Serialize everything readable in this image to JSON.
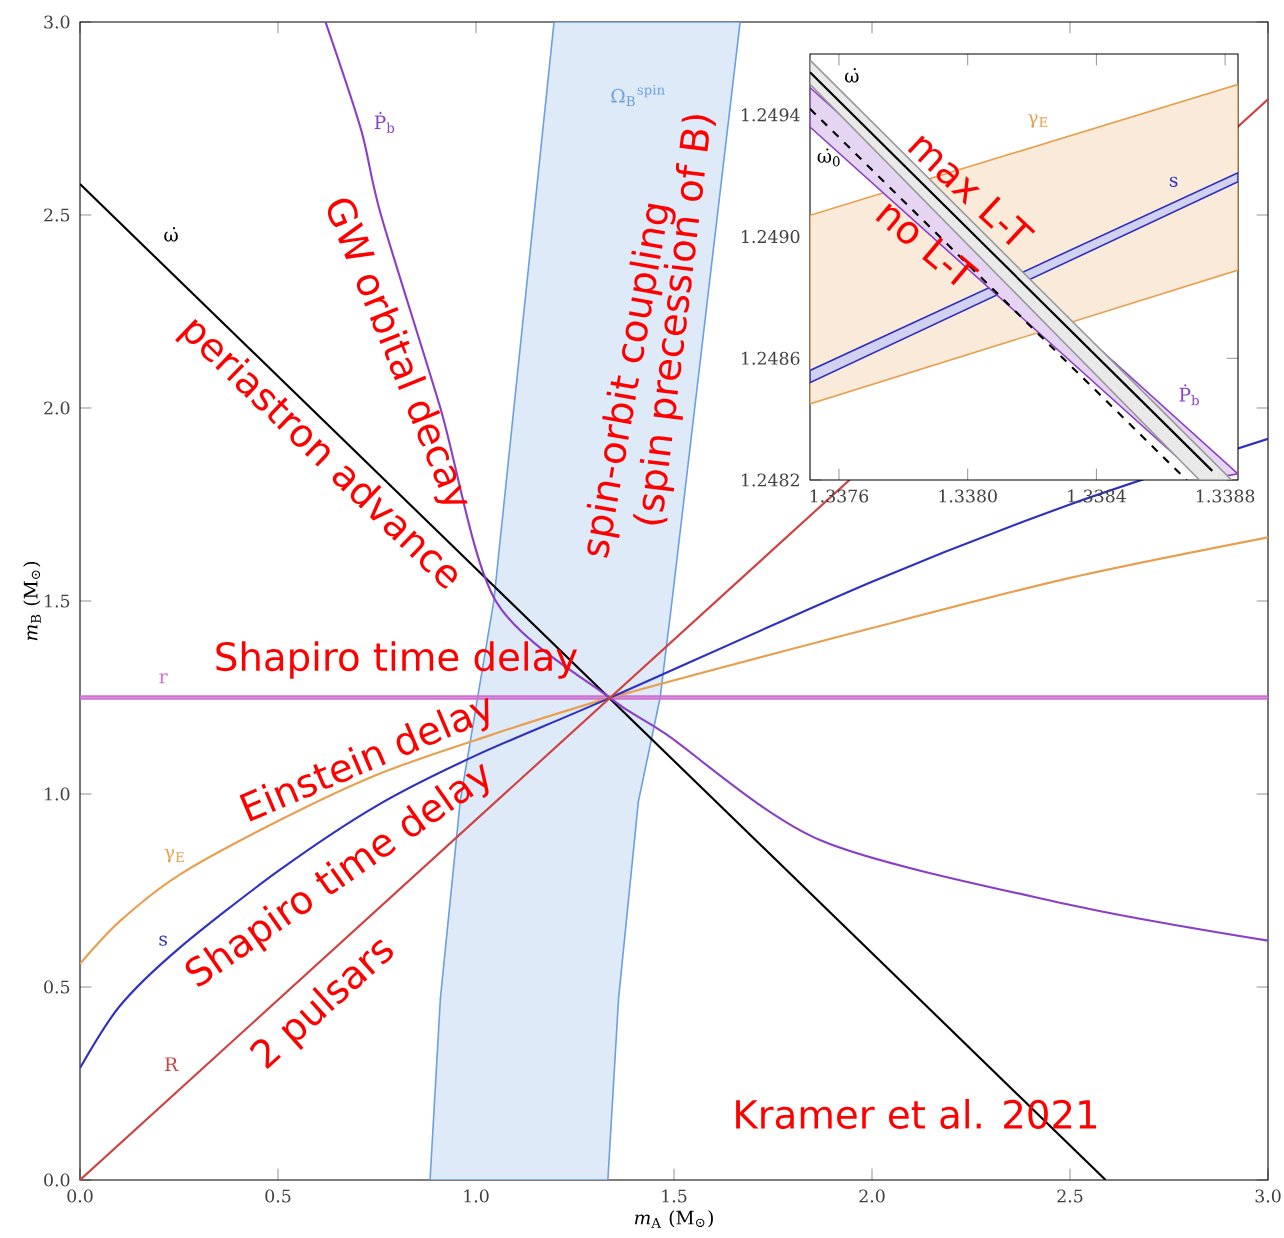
{
  "chart_data": [
    {
      "type": "line",
      "xlabel": "*m*$_{A}$ (M$_{⊙}$)",
      "ylabel": "*m*$_{B}$ (M$_{⊙}$)",
      "xlim": [
        0,
        3
      ],
      "ylim": [
        0,
        3
      ],
      "xticks": [
        {
          "value": 0,
          "label": "0.0"
        },
        {
          "value": 0.5,
          "label": "0.5"
        },
        {
          "value": 1,
          "label": "1.0"
        },
        {
          "value": 1.5,
          "label": "1.5"
        },
        {
          "value": 2,
          "label": "2.0"
        },
        {
          "value": 2.5,
          "label": "2.5"
        },
        {
          "value": 3,
          "label": "3.0"
        }
      ],
      "yticks": [
        {
          "value": 0,
          "label": "0.0"
        },
        {
          "value": 0.5,
          "label": "0.5"
        },
        {
          "value": 1,
          "label": "1.0"
        },
        {
          "value": 1.5,
          "label": "1.5"
        },
        {
          "value": 2,
          "label": "2.0"
        },
        {
          "value": 2.5,
          "label": "2.5"
        },
        {
          "value": 3,
          "label": "3.0"
        }
      ],
      "series": [
        {
          "name": "Ω$_{B}$$^{spin}$",
          "type": "area",
          "color": "#6a9fe0",
          "x": [
            0.884,
            0.91,
            0.96,
            1.045,
            1.197,
            1.667,
            1.495,
            1.465,
            1.41,
            1.36,
            1.333
          ],
          "values": [
            0,
            0.47,
            0.98,
            1.5,
            3.0,
            3.0,
            1.5,
            1.25,
            0.98,
            0.47,
            0
          ]
        },
        {
          "name": "r",
          "color": "#d070d0",
          "x": [
            0,
            3
          ],
          "values": [
            1.253,
            1.253
          ]
        },
        {
          "color": "#d070d0",
          "x": [
            0,
            3
          ],
          "values": [
            1.247,
            1.247
          ]
        },
        {
          "name": "ω̇",
          "color": "#000000",
          "x": [
            0,
            2.59
          ],
          "values": [
            2.58,
            0
          ]
        },
        {
          "name": "Ṗ$_{b}$",
          "color": "#8a3fc8",
          "x": [
            0.62,
            0.71,
            0.76,
            0.91,
            1.05,
            1.338,
            1.48,
            1.87,
            2.49,
            3.0
          ],
          "values": [
            3.0,
            2.72,
            2.5,
            2.0,
            1.5,
            1.249,
            1.155,
            0.88,
            0.715,
            0.62
          ]
        },
        {
          "name": "γ$_{E}$",
          "color": "#e8a050",
          "x": [
            0,
            0.1,
            0.25,
            0.5,
            0.75,
            1.0,
            1.338,
            2.0,
            2.5,
            3.0
          ],
          "values": [
            0.56,
            0.67,
            0.79,
            0.93,
            1.05,
            1.14,
            1.249,
            1.43,
            1.56,
            1.665
          ]
        },
        {
          "name": "s",
          "color": "#3030c0",
          "x": [
            0,
            0.1,
            0.25,
            0.5,
            0.75,
            1.0,
            1.338,
            2.0,
            2.5,
            3.0
          ],
          "values": [
            0.29,
            0.45,
            0.6,
            0.8,
            0.97,
            1.1,
            1.249,
            1.55,
            1.75,
            1.92
          ]
        },
        {
          "name": "R",
          "color": "#d04040",
          "x": [
            0,
            3
          ],
          "values": [
            0,
            2.8
          ]
        }
      ],
      "annotations": [
        "periastron advance",
        "GW orbital decay",
        "spin-orbit coupling",
        "(spin precession of B)",
        "Shapiro time delay",
        "Einstein delay",
        "Shapiro time delay",
        "2 pulsars",
        "Kramer et al. 2021"
      ]
    },
    {
      "type": "line",
      "xlim": [
        1.33751,
        1.33884
      ],
      "ylim": [
        1.2482,
        1.2496
      ],
      "xticks": [
        {
          "value": 1.3376,
          "label": "1.3376"
        },
        {
          "value": 1.338,
          "label": "1.3380"
        },
        {
          "value": 1.3384,
          "label": "1.3384"
        },
        {
          "value": 1.3388,
          "label": "1.3388"
        }
      ],
      "yticks": [
        {
          "value": 1.2482,
          "label": "1.2482"
        },
        {
          "value": 1.2486,
          "label": "1.2486"
        },
        {
          "value": 1.249,
          "label": "1.2490"
        },
        {
          "value": 1.2494,
          "label": "1.2494"
        }
      ],
      "series": [
        {
          "name": "γ$_{E}$",
          "type": "area",
          "color": "#e8a050",
          "x": [
            1.33751,
            1.33884,
            1.33884,
            1.33751
          ],
          "values": [
            1.24907,
            1.2495,
            1.24889,
            1.24845
          ]
        },
        {
          "name": "s",
          "type": "area",
          "color": "#3030c0",
          "x": [
            1.33751,
            1.33884,
            1.33884,
            1.33751
          ],
          "values": [
            1.24856,
            1.24921,
            1.24918,
            1.24852
          ]
        },
        {
          "name": "Ṗ$_{b}$",
          "type": "area",
          "color": "#8a3fc8",
          "x": [
            1.33751,
            1.33884,
            1.33873,
            1.33751
          ],
          "values": [
            1.24949,
            1.24822,
            1.2482,
            1.24936
          ]
        },
        {
          "type": "area",
          "color": "#999999",
          "x": [
            1.33751,
            1.33882,
            1.33872,
            1.33751
          ],
          "values": [
            1.24958,
            1.2482,
            1.2482,
            1.2495
          ]
        },
        {
          "name": "ω̇$_{0}$",
          "color": "#000000",
          "line_style": "dashed",
          "x": [
            1.33751,
            1.33868
          ],
          "values": [
            1.24942,
            1.2482
          ]
        },
        {
          "name": "ω̇",
          "color": "#000000",
          "x": [
            1.33751,
            1.33876
          ],
          "values": [
            1.24954,
            1.24823
          ]
        }
      ],
      "annotations": [
        "max L-T",
        "no L-T"
      ]
    }
  ]
}
